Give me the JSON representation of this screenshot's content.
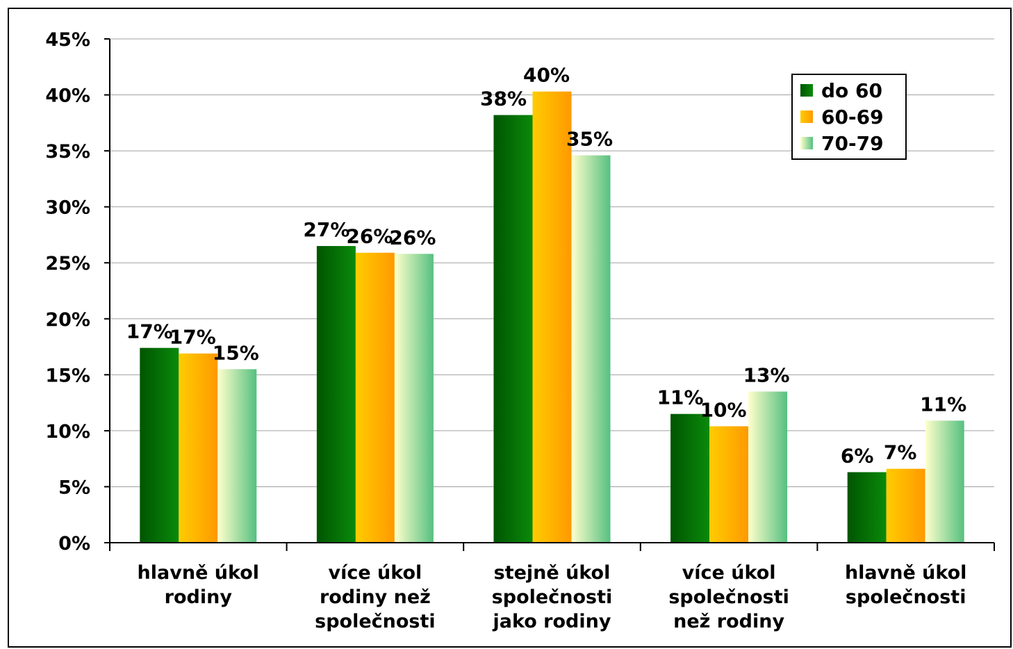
{
  "chart_data": {
    "type": "bar",
    "title": "",
    "xlabel": "",
    "ylabel": "",
    "ylim": [
      0,
      45
    ],
    "yticks": [
      "0%",
      "5%",
      "10%",
      "15%",
      "20%",
      "25%",
      "30%",
      "35%",
      "40%",
      "45%"
    ],
    "grid": true,
    "legend_position": "top-right",
    "categories": [
      [
        "hlavně úkol",
        "rodiny"
      ],
      [
        "více úkol",
        "rodiny než",
        "společnosti"
      ],
      [
        "stejně úkol",
        "společnosti",
        "jako rodiny"
      ],
      [
        "více úkol",
        "společnosti",
        "než rodiny"
      ],
      [
        "hlavně úkol",
        "společnosti"
      ]
    ],
    "series": [
      {
        "name": "do 60",
        "values": [
          17.4,
          26.5,
          38.2,
          11.5,
          6.3
        ],
        "labels": [
          "17%",
          "27%",
          "38%",
          "11%",
          "6%"
        ],
        "colors": [
          "#005500",
          "#0a8a0a"
        ]
      },
      {
        "name": "60-69",
        "values": [
          16.9,
          25.9,
          40.3,
          10.4,
          6.6
        ],
        "labels": [
          "17%",
          "26%",
          "40%",
          "10%",
          "7%"
        ],
        "colors": [
          "#ffcc00",
          "#ff9900"
        ]
      },
      {
        "name": "70-79",
        "values": [
          15.5,
          25.8,
          34.6,
          13.5,
          10.9
        ],
        "labels": [
          "15%",
          "26%",
          "35%",
          "13%",
          "11%"
        ],
        "colors": [
          "#ffffcc",
          "#55c080"
        ]
      }
    ]
  }
}
